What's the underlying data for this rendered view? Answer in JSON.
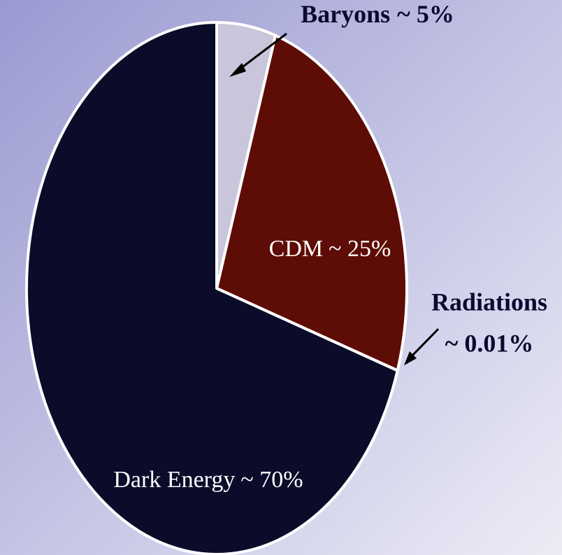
{
  "chart_data": {
    "type": "pie",
    "categories": [
      "Baryons",
      "CDM",
      "Radiations",
      "Dark Energy"
    ],
    "values": [
      5,
      25,
      0.01,
      70
    ],
    "value_labels": [
      "~ 5%",
      "~ 25%",
      "~ 0.01%",
      "~ 70%"
    ],
    "colors": [
      "#c9c6dc",
      "#5e0c06",
      "#3f9fc6",
      "#0b0b2a"
    ]
  }
}
